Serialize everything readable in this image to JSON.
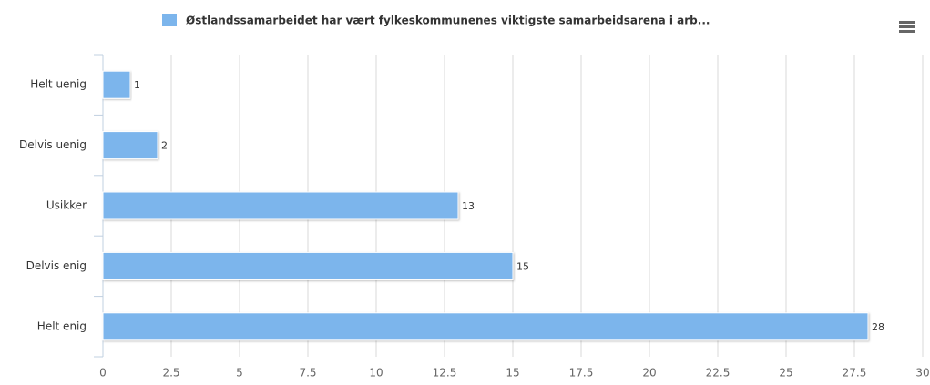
{
  "chart_data": {
    "type": "bar",
    "orientation": "horizontal",
    "series": [
      {
        "name": "Østlandssamarbeidet har vært fylkeskommunenes viktigste samarbeidsarena i arb...",
        "color": "#7cb5ec",
        "values": [
          1,
          2,
          13,
          15,
          28
        ]
      }
    ],
    "categories": [
      "Helt uenig",
      "Delvis uenig",
      "Usikker",
      "Delvis enig",
      "Helt enig"
    ],
    "xlim": [
      0,
      30
    ],
    "xticks": [
      0,
      2.5,
      5,
      7.5,
      10,
      12.5,
      15,
      17.5,
      20,
      22.5,
      25,
      27.5,
      30
    ],
    "grid": true,
    "legend": "top"
  }
}
